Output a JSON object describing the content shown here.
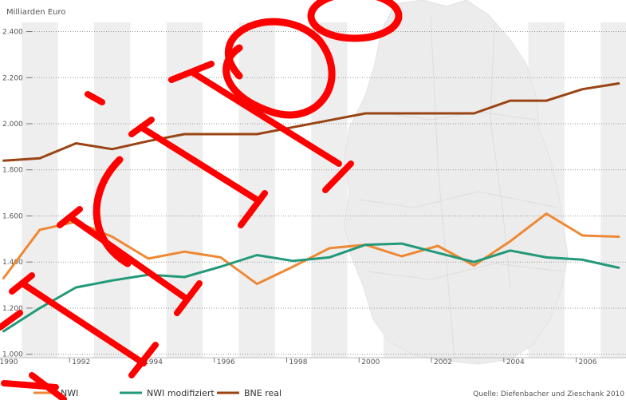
{
  "chart_data": {
    "type": "line",
    "ylabel": "Milliarden Euro",
    "xlabel": "",
    "source": "Quelle: Diefenbacher und Zieschank 2010",
    "x_ticks": [
      "1990",
      "1992",
      "1994",
      "1996",
      "1998",
      "2000",
      "2002",
      "2004",
      "2006"
    ],
    "y_ticks": [
      "1.000",
      "1.200",
      "1.400",
      "1.600",
      "1.800",
      "2.000",
      "2.200",
      "2.400"
    ],
    "xlim": [
      1989.9,
      2007.2
    ],
    "ylim": [
      985,
      2440
    ],
    "grid": "horizontal dotted, alternating vertical year bands",
    "legend_position": "bottom-left",
    "x": [
      1990,
      1991,
      1992,
      1993,
      1994,
      1995,
      1996,
      1997,
      1998,
      1999,
      2000,
      2001,
      2002,
      2003,
      2004,
      2005,
      2006,
      2007
    ],
    "series": [
      {
        "name": "NWI",
        "color": "#ee8833",
        "values": [
          1330,
          1540,
          1575,
          1510,
          1415,
          1445,
          1420,
          1305,
          1380,
          1460,
          1475,
          1425,
          1470,
          1385,
          1490,
          1610,
          1515,
          1510
        ]
      },
      {
        "name": "NWI modifiziert",
        "color": "#22997a",
        "values": [
          1100,
          1200,
          1290,
          1320,
          1345,
          1335,
          1380,
          1430,
          1405,
          1420,
          1475,
          1480,
          1440,
          1400,
          1450,
          1420,
          1410,
          1375
        ]
      },
      {
        "name": "BNE real",
        "color": "#9a4414",
        "values": [
          1840,
          1850,
          1915,
          1890,
          1925,
          1955,
          1955,
          1955,
          1985,
          2015,
          2045,
          2045,
          2045,
          2045,
          2100,
          2100,
          2150,
          2175
        ]
      }
    ]
  }
}
